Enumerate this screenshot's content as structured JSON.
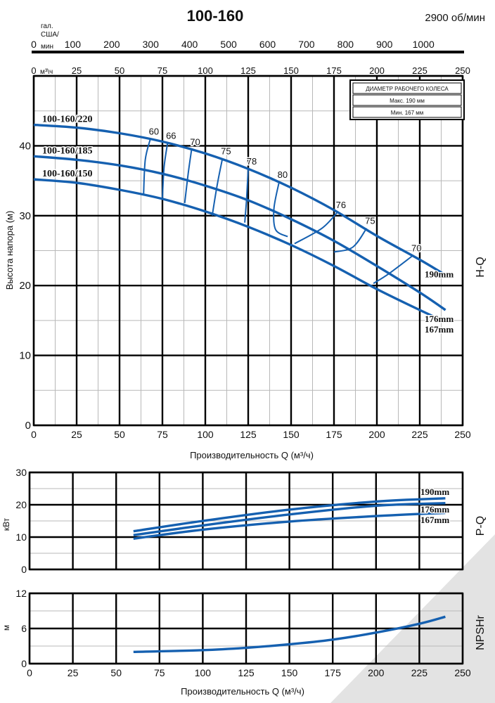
{
  "header": {
    "model": "100-160",
    "speed": "2900 об/мин",
    "gal_unit_line1": "гал.",
    "gal_unit_line2": "США/",
    "gal_unit_line3": "мин",
    "m3h_unit": "м³\\ч"
  },
  "gal_ticks": [
    "0",
    "100",
    "200",
    "300",
    "400",
    "500",
    "600",
    "700",
    "800",
    "900",
    "1000"
  ],
  "m3h_ticks": [
    "0",
    "25",
    "50",
    "75",
    "100",
    "125",
    "150",
    "175",
    "200",
    "225",
    "250"
  ],
  "legend": {
    "title": "ДИАМЕТР РАБОЧЕГО КОЛЕСА",
    "max": "Макс. 190 мм",
    "min": "Мин. 167 мм"
  },
  "chart_data": [
    {
      "type": "line",
      "id": "H-Q",
      "side_label": "H-Q",
      "ylabel": "Высота напора (м)",
      "xlabel": "Производительность Q (м³/ч)",
      "xlim": [
        0,
        250
      ],
      "ylim": [
        0,
        50
      ],
      "x_ticks": [
        "0",
        "25",
        "50",
        "75",
        "100",
        "125",
        "150",
        "175",
        "200",
        "225",
        "250"
      ],
      "y_ticks": [
        "0",
        "10",
        "20",
        "30",
        "40"
      ],
      "grid": true,
      "curve_labels_left": [
        "100-160/220",
        "100-160/185",
        "100-160/150"
      ],
      "series": [
        {
          "name": "190mm",
          "x": [
            0,
            25,
            50,
            75,
            100,
            125,
            150,
            175,
            200,
            225,
            240
          ],
          "y": [
            43.0,
            42.6,
            41.8,
            40.6,
            38.9,
            36.7,
            34.0,
            30.8,
            27.1,
            23.7,
            21.5
          ]
        },
        {
          "name": "176mm",
          "x": [
            0,
            25,
            50,
            75,
            100,
            125,
            150,
            175,
            200,
            225,
            240
          ],
          "y": [
            38.5,
            38.0,
            37.2,
            36.0,
            34.3,
            32.2,
            29.5,
            26.4,
            22.8,
            19.0,
            16.5
          ]
        },
        {
          "name": "167mm",
          "x": [
            0,
            25,
            50,
            75,
            100,
            125,
            150,
            175,
            200,
            225,
            240
          ],
          "y": [
            35.2,
            34.7,
            33.7,
            32.4,
            30.6,
            28.4,
            25.8,
            22.8,
            19.5,
            16.5,
            14.8
          ]
        }
      ],
      "efficiency_labels": [
        "60",
        "66",
        "70",
        "75",
        "78",
        "80",
        "76",
        "75",
        "70"
      ],
      "efficiency_contours": [
        {
          "label": "60",
          "x": [
            68,
            65,
            64
          ],
          "y": [
            41.0,
            38.0,
            33.0
          ]
        },
        {
          "label": "66",
          "x": [
            78,
            76,
            75
          ],
          "y": [
            40.4,
            37.0,
            32.6
          ]
        },
        {
          "label": "70",
          "x": [
            92,
            90,
            88
          ],
          "y": [
            39.5,
            36.0,
            31.8
          ]
        },
        {
          "label": "75",
          "x": [
            110,
            107,
            104
          ],
          "y": [
            38.2,
            34.5,
            30.0
          ]
        },
        {
          "label": "78",
          "x": [
            125,
            124,
            123
          ],
          "y": [
            36.7,
            32.2,
            29.0
          ]
        },
        {
          "label": "80",
          "x": [
            143,
            140,
            141,
            148
          ],
          "y": [
            34.8,
            31.0,
            28.0,
            27.0
          ]
        },
        {
          "label": "76",
          "x": [
            177,
            168,
            152
          ],
          "y": [
            30.5,
            28.2,
            26.0
          ]
        },
        {
          "label": "75",
          "x": [
            194,
            186,
            175
          ],
          "y": [
            28.2,
            25.5,
            24.8
          ]
        },
        {
          "label": "70",
          "x": [
            221,
            207,
            198
          ],
          "y": [
            24.3,
            21.7,
            20.3
          ]
        }
      ]
    },
    {
      "type": "line",
      "id": "P-Q",
      "side_label": "P-Q",
      "ylabel": "кВт",
      "xlim": [
        0,
        250
      ],
      "ylim": [
        0,
        30
      ],
      "x_ticks": [],
      "y_ticks": [
        "0",
        "10",
        "20",
        "30"
      ],
      "grid": true,
      "series": [
        {
          "name": "190mm",
          "x": [
            60,
            100,
            150,
            200,
            240
          ],
          "y": [
            11.8,
            15.0,
            18.5,
            21.0,
            22.0
          ]
        },
        {
          "name": "176mm",
          "x": [
            60,
            100,
            150,
            200,
            240
          ],
          "y": [
            10.6,
            13.6,
            17.0,
            19.7,
            20.5
          ]
        },
        {
          "name": "167mm",
          "x": [
            60,
            100,
            150,
            200,
            240
          ],
          "y": [
            9.5,
            12.3,
            14.8,
            16.5,
            17.5
          ]
        }
      ]
    },
    {
      "type": "line",
      "id": "NPSHr",
      "side_label": "NPSHr",
      "ylabel": "м",
      "xlabel": "Производительность Q (м³/ч)",
      "xlim": [
        0,
        250
      ],
      "ylim": [
        0,
        12
      ],
      "x_ticks": [
        "0",
        "25",
        "50",
        "75",
        "100",
        "125",
        "150",
        "175",
        "200",
        "225",
        "250"
      ],
      "y_ticks": [
        "0",
        "6",
        "12"
      ],
      "grid": true,
      "series": [
        {
          "name": "NPSHr",
          "x": [
            60,
            100,
            125,
            150,
            175,
            200,
            225,
            240
          ],
          "y": [
            2.0,
            2.3,
            2.7,
            3.3,
            4.1,
            5.3,
            6.8,
            8.0
          ]
        }
      ]
    }
  ],
  "colors": {
    "curve": "#1560b0",
    "grid_minor": "#b8b8b8",
    "grid_major": "#000000",
    "shade": "#e3e3e3"
  }
}
